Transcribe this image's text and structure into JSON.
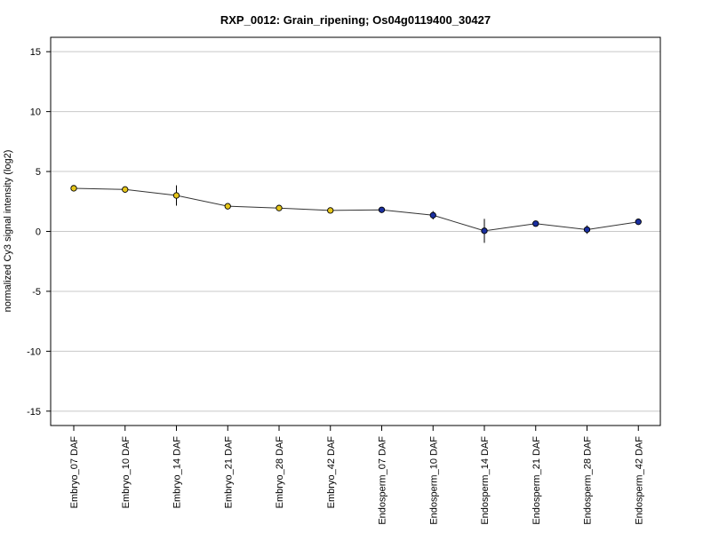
{
  "chart_data": {
    "type": "line",
    "title": "RXP_0012: Grain_ripening; Os04g0119400_30427",
    "xlabel": "",
    "ylabel": "normalized Cy3 signal intensity (log2)",
    "ylim": [
      -16.2,
      16.2
    ],
    "yticks": [
      -15,
      -10,
      -5,
      0,
      5,
      10,
      15
    ],
    "grid": true,
    "categories": [
      "Embryo_07 DAF",
      "Embryo_10 DAF",
      "Embryo_14 DAF",
      "Embryo_21 DAF",
      "Embryo_28 DAF",
      "Embryo_42 DAF",
      "Endosperm_07 DAF",
      "Endosperm_10 DAF",
      "Endosperm_14 DAF",
      "Endosperm_21 DAF",
      "Endosperm_28 DAF",
      "Endosperm_42 DAF"
    ],
    "series": [
      {
        "values": [
          3.6,
          3.5,
          3.0,
          2.1,
          1.95,
          1.75,
          1.8,
          1.35,
          0.05,
          0.65,
          0.15,
          0.8
        ],
        "error": [
          0.1,
          0.1,
          0.85,
          0.1,
          0.1,
          0.1,
          0.1,
          0.35,
          1.0,
          0.1,
          0.35,
          0.1
        ],
        "point_colors": [
          "#e6c619",
          "#e6c619",
          "#e6c619",
          "#e6c619",
          "#e6c619",
          "#e6c619",
          "#1a2fa0",
          "#1a2fa0",
          "#1a2fa0",
          "#1a2fa0",
          "#1a2fa0",
          "#1a2fa0"
        ]
      }
    ],
    "colors": {
      "embryo": "#e6c619",
      "endosperm": "#1a2fa0",
      "line": "#333333",
      "grid": "#c8c8c8",
      "frame": "#000000"
    }
  }
}
